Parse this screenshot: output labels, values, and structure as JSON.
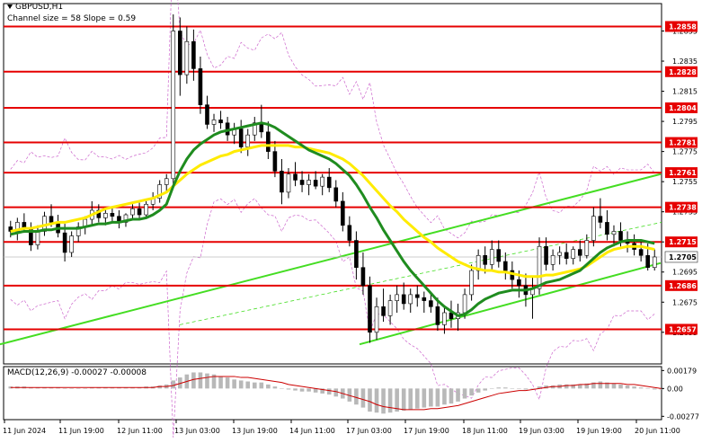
{
  "chart_data": {
    "type": "candlestick",
    "title": "GBPUSD,H1",
    "subtitle": "Channel size = 58 Slope = 0.59",
    "price_axis": {
      "range": [
        1.2634,
        1.2872
      ],
      "ticks": [
        "1.2855",
        "1.2835",
        "1.2815",
        "1.2795",
        "1.2775",
        "1.2755",
        "1.2735",
        "1.2715",
        "1.2695",
        "1.2675",
        "1.2655"
      ]
    },
    "levels": [
      {
        "price": 1.2858,
        "label": "1.2858"
      },
      {
        "price": 1.2828,
        "label": "1.2828"
      },
      {
        "price": 1.2804,
        "label": "1.2804"
      },
      {
        "price": 1.2781,
        "label": "1.2781"
      },
      {
        "price": 1.2761,
        "label": "1.2761"
      },
      {
        "price": 1.2738,
        "label": "1.2738"
      },
      {
        "price": 1.2715,
        "label": "1.2715"
      },
      {
        "price": 1.2686,
        "label": "1.2686"
      },
      {
        "price": 1.2657,
        "label": "1.2657"
      }
    ],
    "current_price": {
      "price": 1.2705,
      "label": "1.2705"
    },
    "channel": {
      "upper": [
        [
          0,
          1.2647
        ],
        [
          735,
          1.276
        ]
      ],
      "lower": [
        [
          400,
          1.2647
        ],
        [
          735,
          1.2701
        ]
      ]
    },
    "candles": [
      [
        1.2725,
        1.2729,
        1.2718,
        1.2722
      ],
      [
        1.2722,
        1.2731,
        1.2716,
        1.2728
      ],
      [
        1.2728,
        1.2734,
        1.2721,
        1.2724
      ],
      [
        1.2724,
        1.2728,
        1.2709,
        1.2713
      ],
      [
        1.2713,
        1.2726,
        1.271,
        1.2722
      ],
      [
        1.2722,
        1.2735,
        1.2719,
        1.2732
      ],
      [
        1.2732,
        1.274,
        1.2725,
        1.2728
      ],
      [
        1.2728,
        1.2733,
        1.2718,
        1.2721
      ],
      [
        1.2721,
        1.2727,
        1.2702,
        1.2708
      ],
      [
        1.2708,
        1.2722,
        1.2705,
        1.2719
      ],
      [
        1.2719,
        1.2728,
        1.2715,
        1.2725
      ],
      [
        1.2725,
        1.2732,
        1.272,
        1.273
      ],
      [
        1.273,
        1.2742,
        1.2726,
        1.2736
      ],
      [
        1.2736,
        1.274,
        1.2728,
        1.2731
      ],
      [
        1.2731,
        1.2738,
        1.2726,
        1.2734
      ],
      [
        1.2734,
        1.2738,
        1.2728,
        1.2732
      ],
      [
        1.2732,
        1.2736,
        1.2724,
        1.2728
      ],
      [
        1.2728,
        1.2734,
        1.2725,
        1.2733
      ],
      [
        1.2733,
        1.274,
        1.273,
        1.2737
      ],
      [
        1.2737,
        1.2741,
        1.273,
        1.2733
      ],
      [
        1.2733,
        1.2742,
        1.2731,
        1.274
      ],
      [
        1.274,
        1.2748,
        1.2736,
        1.2744
      ],
      [
        1.2744,
        1.2756,
        1.2741,
        1.2753
      ],
      [
        1.2753,
        1.276,
        1.2748,
        1.2757
      ],
      [
        1.2757,
        1.2866,
        1.2752,
        1.2855
      ],
      [
        1.2855,
        1.2864,
        1.2812,
        1.2826
      ],
      [
        1.2826,
        1.2858,
        1.282,
        1.2848
      ],
      [
        1.2848,
        1.2856,
        1.2822,
        1.283
      ],
      [
        1.283,
        1.2838,
        1.28,
        1.2806
      ],
      [
        1.2806,
        1.2812,
        1.279,
        1.2793
      ],
      [
        1.2793,
        1.28,
        1.2788,
        1.2796
      ],
      [
        1.2796,
        1.2802,
        1.279,
        1.2794
      ],
      [
        1.2794,
        1.2798,
        1.2782,
        1.2786
      ],
      [
        1.2786,
        1.2794,
        1.278,
        1.279
      ],
      [
        1.279,
        1.2796,
        1.2774,
        1.2778
      ],
      [
        1.2778,
        1.279,
        1.2772,
        1.2786
      ],
      [
        1.2786,
        1.2798,
        1.2782,
        1.2794
      ],
      [
        1.2794,
        1.2806,
        1.2784,
        1.2788
      ],
      [
        1.2788,
        1.2795,
        1.277,
        1.2775
      ],
      [
        1.2775,
        1.2782,
        1.2758,
        1.2762
      ],
      [
        1.2762,
        1.277,
        1.274,
        1.2748
      ],
      [
        1.2748,
        1.2764,
        1.2744,
        1.276
      ],
      [
        1.276,
        1.2768,
        1.2752,
        1.2756
      ],
      [
        1.2756,
        1.2762,
        1.2748,
        1.2753
      ],
      [
        1.2753,
        1.276,
        1.2746,
        1.2756
      ],
      [
        1.2756,
        1.2762,
        1.275,
        1.2752
      ],
      [
        1.2752,
        1.276,
        1.2746,
        1.2758
      ],
      [
        1.2758,
        1.2764,
        1.2748,
        1.2751
      ],
      [
        1.2751,
        1.2756,
        1.2738,
        1.2742
      ],
      [
        1.2742,
        1.2748,
        1.2722,
        1.2726
      ],
      [
        1.2726,
        1.2732,
        1.2712,
        1.2716
      ],
      [
        1.2716,
        1.2722,
        1.269,
        1.2698
      ],
      [
        1.2698,
        1.2708,
        1.268,
        1.2686
      ],
      [
        1.2686,
        1.2692,
        1.2648,
        1.2655
      ],
      [
        1.2655,
        1.2678,
        1.265,
        1.2672
      ],
      [
        1.2672,
        1.2684,
        1.2662,
        1.2666
      ],
      [
        1.2666,
        1.268,
        1.266,
        1.2676
      ],
      [
        1.2676,
        1.2686,
        1.2668,
        1.268
      ],
      [
        1.268,
        1.2688,
        1.267,
        1.2674
      ],
      [
        1.2674,
        1.2684,
        1.2668,
        1.268
      ],
      [
        1.268,
        1.2686,
        1.2672,
        1.2678
      ],
      [
        1.2678,
        1.2682,
        1.2668,
        1.2676
      ],
      [
        1.2676,
        1.2682,
        1.2668,
        1.2672
      ],
      [
        1.2672,
        1.2678,
        1.2656,
        1.266
      ],
      [
        1.266,
        1.2672,
        1.2654,
        1.2668
      ],
      [
        1.2668,
        1.2676,
        1.2658,
        1.2664
      ],
      [
        1.2664,
        1.2674,
        1.2656,
        1.2668
      ],
      [
        1.2668,
        1.2684,
        1.2664,
        1.268
      ],
      [
        1.268,
        1.27,
        1.2676,
        1.2696
      ],
      [
        1.2696,
        1.271,
        1.269,
        1.2706
      ],
      [
        1.2706,
        1.2712,
        1.2694,
        1.27
      ],
      [
        1.27,
        1.2716,
        1.2696,
        1.271
      ],
      [
        1.271,
        1.2716,
        1.2698,
        1.2702
      ],
      [
        1.2702,
        1.2708,
        1.269,
        1.2696
      ],
      [
        1.2696,
        1.2702,
        1.2684,
        1.269
      ],
      [
        1.269,
        1.2696,
        1.2678,
        1.2686
      ],
      [
        1.2686,
        1.2694,
        1.2672,
        1.268
      ],
      [
        1.268,
        1.2692,
        1.2664,
        1.2684
      ],
      [
        1.2684,
        1.2718,
        1.268,
        1.2712
      ],
      [
        1.2712,
        1.2718,
        1.2696,
        1.27
      ],
      [
        1.27,
        1.271,
        1.2696,
        1.2706
      ],
      [
        1.2706,
        1.2712,
        1.27,
        1.2708
      ],
      [
        1.2708,
        1.2714,
        1.27,
        1.2704
      ],
      [
        1.2704,
        1.2712,
        1.27,
        1.271
      ],
      [
        1.271,
        1.2716,
        1.2702,
        1.2706
      ],
      [
        1.2706,
        1.272,
        1.2704,
        1.2716
      ],
      [
        1.2716,
        1.2738,
        1.2712,
        1.2732
      ],
      [
        1.2732,
        1.2744,
        1.2724,
        1.2728
      ],
      [
        1.2728,
        1.2736,
        1.2716,
        1.272
      ],
      [
        1.272,
        1.2726,
        1.2712,
        1.2722
      ],
      [
        1.2722,
        1.2728,
        1.2712,
        1.2716
      ],
      [
        1.2716,
        1.2722,
        1.2708,
        1.2714
      ],
      [
        1.2714,
        1.272,
        1.2706,
        1.271
      ],
      [
        1.271,
        1.2716,
        1.2702,
        1.2706
      ],
      [
        1.2706,
        1.2714,
        1.2696,
        1.2698
      ],
      [
        1.2698,
        1.271,
        1.2696,
        1.2705
      ]
    ],
    "moving_averages": [
      {
        "color": "#ffeb00",
        "values": [
          1.2722,
          1.2723,
          1.2724,
          1.2724,
          1.2725,
          1.2726,
          1.2727,
          1.2728,
          1.2728,
          1.2729,
          1.273,
          1.2731,
          1.2733,
          1.2735,
          1.2737,
          1.2738,
          1.2739,
          1.274,
          1.2741,
          1.2742,
          1.2743,
          1.2744,
          1.2746,
          1.2748,
          1.2752,
          1.2756,
          1.276,
          1.2763,
          1.2766,
          1.2768,
          1.277,
          1.2772,
          1.2773,
          1.2775,
          1.2776,
          1.2777,
          1.2778,
          1.2779,
          1.2779,
          1.2779,
          1.2779,
          1.2779,
          1.2778,
          1.2778,
          1.2777,
          1.2776,
          1.2775,
          1.2774,
          1.2772,
          1.277,
          1.2767,
          1.2763,
          1.2759,
          1.2754,
          1.2749,
          1.2744,
          1.2739,
          1.2735,
          1.273,
          1.2726,
          1.2722,
          1.2718,
          1.2715,
          1.2711,
          1.2708,
          1.2705,
          1.2702,
          1.27,
          1.2698,
          1.2697,
          1.2696,
          1.2696,
          1.2695,
          1.2695,
          1.2694,
          1.2693,
          1.2692,
          1.2692,
          1.2692,
          1.2693,
          1.2693,
          1.2694,
          1.2695,
          1.2696,
          1.2697,
          1.2699,
          1.2702,
          1.2705,
          1.2708,
          1.271,
          1.2711,
          1.2712,
          1.2712,
          1.2712,
          1.2711,
          1.271
        ]
      },
      {
        "color": "#1f8c1f",
        "values": [
          1.272,
          1.2721,
          1.2722,
          1.2722,
          1.2722,
          1.2723,
          1.2723,
          1.2724,
          1.2724,
          1.2724,
          1.2724,
          1.2725,
          1.2726,
          1.2727,
          1.2727,
          1.2728,
          1.2728,
          1.2729,
          1.273,
          1.273,
          1.2731,
          1.2733,
          1.2736,
          1.274,
          1.2752,
          1.2762,
          1.277,
          1.2776,
          1.278,
          1.2783,
          1.2786,
          1.2788,
          1.2789,
          1.279,
          1.2791,
          1.2792,
          1.2793,
          1.2794,
          1.2793,
          1.2791,
          1.2788,
          1.2785,
          1.2782,
          1.2779,
          1.2776,
          1.2774,
          1.2772,
          1.277,
          1.2767,
          1.2763,
          1.2759,
          1.2753,
          1.2746,
          1.2738,
          1.2731,
          1.2723,
          1.2716,
          1.2709,
          1.2702,
          1.2696,
          1.2691,
          1.2686,
          1.2681,
          1.2676,
          1.2672,
          1.2669,
          1.2666,
          1.2667,
          1.267,
          1.2674,
          1.2677,
          1.2679,
          1.2681,
          1.2682,
          1.2683,
          1.2683,
          1.2683,
          1.2684,
          1.2686,
          1.2688,
          1.2689,
          1.269,
          1.2692,
          1.2694,
          1.2696,
          1.27,
          1.2704,
          1.2708,
          1.2711,
          1.2713,
          1.2715,
          1.2716,
          1.2716,
          1.2716,
          1.2715,
          1.2714
        ]
      }
    ],
    "macd": {
      "label": "MACD(12,26,9) -0.00027 -0.00008",
      "axis_ticks": [
        "0.00179",
        "0.00",
        "-0.00277"
      ],
      "range": [
        -0.0031,
        0.002
      ],
      "histogram": [
        0.0002,
        0.0002,
        0.0002,
        0.0001,
        0.0001,
        0.0001,
        0.0001,
        0.0001,
        0.0,
        0.0,
        0.0,
        0.0,
        0.0001,
        0.0001,
        0.0001,
        0.0001,
        0.0001,
        0.0001,
        0.0001,
        0.0001,
        0.0002,
        0.0002,
        0.0003,
        0.0004,
        0.0008,
        0.0011,
        0.0014,
        0.0016,
        0.0016,
        0.0015,
        0.0014,
        0.0012,
        0.0011,
        0.0009,
        0.0008,
        0.0007,
        0.0006,
        0.0006,
        0.0004,
        0.0002,
        0.0,
        -0.0001,
        -0.0002,
        -0.0003,
        -0.0003,
        -0.0004,
        -0.0005,
        -0.0006,
        -0.0008,
        -0.001,
        -0.0013,
        -0.0016,
        -0.0019,
        -0.0023,
        -0.0024,
        -0.0025,
        -0.0024,
        -0.0023,
        -0.0022,
        -0.0021,
        -0.002,
        -0.0019,
        -0.0018,
        -0.0018,
        -0.0016,
        -0.0015,
        -0.0013,
        -0.001,
        -0.0007,
        -0.0004,
        -0.0002,
        0.0,
        0.0001,
        0.0001,
        0.0,
        0.0,
        -0.0001,
        0.0,
        0.0002,
        0.0003,
        0.0003,
        0.0004,
        0.0004,
        0.0004,
        0.0004,
        0.0005,
        0.0006,
        0.0007,
        0.0006,
        0.0005,
        0.0004,
        0.0003,
        0.0002,
        0.0001,
        0.0,
        -0.0001,
        -0.0001
      ],
      "signal": [
        0.0001,
        0.0001,
        0.0001,
        0.0001,
        0.0001,
        0.0001,
        0.0001,
        0.0001,
        0.0001,
        0.0001,
        0.0001,
        0.0001,
        0.0001,
        0.0001,
        0.0001,
        0.0001,
        0.0001,
        0.0001,
        0.0001,
        0.0001,
        0.0001,
        0.0001,
        0.0002,
        0.0002,
        0.0003,
        0.0005,
        0.0007,
        0.0009,
        0.001,
        0.0011,
        0.0012,
        0.0012,
        0.0012,
        0.0012,
        0.0011,
        0.0011,
        0.001,
        0.0009,
        0.0008,
        0.0007,
        0.0006,
        0.0004,
        0.0003,
        0.0002,
        0.0001,
        0.0,
        -0.0001,
        -0.0002,
        -0.0003,
        -0.0005,
        -0.0007,
        -0.0009,
        -0.0011,
        -0.0013,
        -0.0016,
        -0.0018,
        -0.0019,
        -0.002,
        -0.0021,
        -0.0021,
        -0.0021,
        -0.0021,
        -0.002,
        -0.002,
        -0.0019,
        -0.0018,
        -0.0017,
        -0.0015,
        -0.0013,
        -0.0011,
        -0.0009,
        -0.0007,
        -0.0005,
        -0.0004,
        -0.0003,
        -0.0002,
        -0.0002,
        -0.0001,
        0.0,
        0.0001,
        0.0002,
        0.0002,
        0.0003,
        0.0003,
        0.0004,
        0.0004,
        0.0005,
        0.0005,
        0.0005,
        0.0005,
        0.0005,
        0.0004,
        0.0004,
        0.0003,
        0.0002,
        0.0001,
        0.0
      ]
    },
    "x_ticks": [
      "11 Jun 2024",
      "11 Jun 19:00",
      "12 Jun 11:00",
      "13 Jun 03:00",
      "13 Jun 19:00",
      "14 Jun 11:00",
      "17 Jun 03:00",
      "17 Jun 19:00",
      "18 Jun 11:00",
      "19 Jun 03:00",
      "19 Jun 19:00",
      "20 Jun 11:00"
    ],
    "colors": {
      "level_line": "#e60000",
      "level_label_bg": "#e60000",
      "current_label_bg": "#ffffff",
      "channel": "#44dd22",
      "candle": "#000000",
      "envelope": "#cc66cc",
      "macd_hist": "#b8b8b8",
      "macd_signal": "#cc0000"
    }
  }
}
